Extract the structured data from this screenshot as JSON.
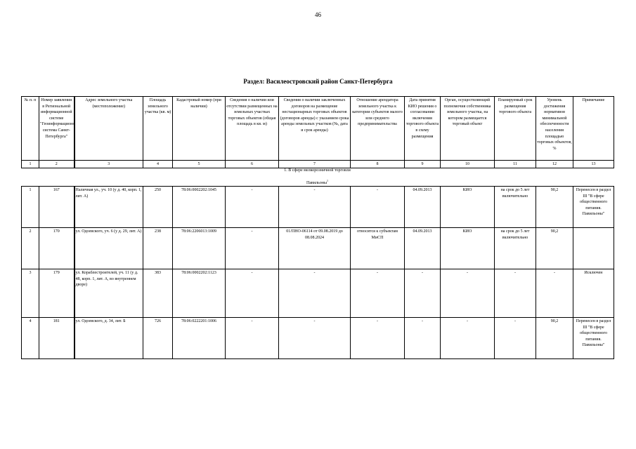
{
  "page_number": "46",
  "section_title": "Раздел: Василеостровский район Санкт-Петербурга",
  "table": {
    "headers": [
      "№ п. п",
      "Номер заявления в Региональной информационной системе \"Геоинформационная система Санкт-Петербурга\"",
      "Адрес земельного участка (местоположение)",
      "Площадь земельного участка (кв. м)",
      "Кадастровый номер (при наличии)",
      "Сведения о наличии или отсутствии размещенных на земельных участках торговых объектов (общая площадь в кв. м)",
      "Сведения о наличии заключенных договоров на размещение нестационарных торговых объектов (договоров аренды) с указанием срока аренды земельных участков (№, дата и срок аренды)",
      "Отношение арендатора земельного участка к категории субъектов малого или среднего предпринимательства",
      "Дата принятия КИО решения о согласовании включения торгового объекта в схему размещения",
      "Орган, осуществляющий полномочия собственника земельного участка, на котором размещается торговый объект",
      "Планируемый срок размещения торгового объекта",
      "Уровень достижения нормативов минимальной обеспеченности населения площадью торговых объектов, %",
      "Примечание"
    ],
    "column_numbers": [
      "1",
      "2",
      "3",
      "4",
      "5",
      "6",
      "7",
      "8",
      "9",
      "10",
      "11",
      "12",
      "13"
    ],
    "subsection": "1. В сфере мелкорозничной торговли",
    "subsubsection": "Павильоны",
    "subsubsection_note": "1",
    "rows": [
      [
        "1",
        "167",
        "Наличная ул., уч. 10 (у д. 40, корп. 1, лит. А)",
        "250",
        "78:06:0002202:1045",
        "-",
        "-",
        "-",
        "04.09.2013",
        "КИО",
        "на срок до 5 лет включительно",
        "90,2",
        "Перенесен в раздел III \"В сфере общественного питания. Павильоны\""
      ],
      [
        "2",
        "170",
        "ул. Одоевского, уч. 6 (у д. 29, лит. А)",
        "238",
        "78:06:2206013:1009",
        "-",
        "01/ПНО-06114 от 09.08.2019 до 08.08.2024",
        "относится к субъектам МиСП",
        "04.09.2013",
        "КИО",
        "на срок до 5 лет включительно",
        "90,2",
        ""
      ],
      [
        "3",
        "179",
        "ул. Кораблестроителей, уч. 11 (у д. 48, корп. 1, лит. А, во внутреннем дворе)",
        "383",
        "78:06:0002202:1123",
        "-",
        "-",
        "-",
        "-",
        "-",
        "-",
        "-",
        "Исключен"
      ],
      [
        "4",
        "181",
        "ул. Одоевского, д. 34, лит. Б",
        "726",
        "78:06:0222201:1006",
        "-",
        "-",
        "-",
        "-",
        "-",
        "-",
        "90,2",
        "Перенесен в раздел III \"В сфере общественного питания. Павильоны\""
      ]
    ]
  }
}
